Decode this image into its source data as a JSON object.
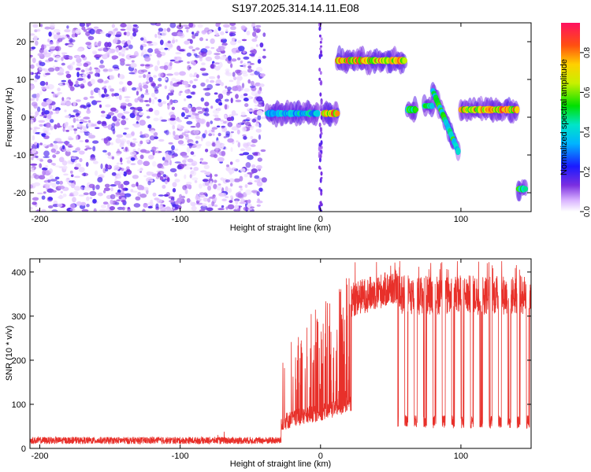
{
  "title": "S197.2025.314.14.11.E08",
  "chart_data": [
    {
      "type": "heatmap",
      "xlabel": "Height of straight line (km)",
      "ylabel": "Frequency (Hz)",
      "xlim": [
        -207,
        150
      ],
      "ylim": [
        -25,
        25
      ],
      "xticks": [
        -200,
        -100,
        0,
        100
      ],
      "yticks": [
        -20,
        -10,
        0,
        10,
        20
      ],
      "colorbar": {
        "label": "Normalized spectral amplitude",
        "range": [
          0.0,
          0.95
        ],
        "ticks": [
          0.0,
          0.2,
          0.4,
          0.6,
          0.8
        ]
      },
      "noise_region_x": [
        -207,
        -40
      ],
      "features": [
        {
          "x_start": -38,
          "x_end": -2,
          "freq_center": 1,
          "amplitude": 0.45
        },
        {
          "x_start": 2,
          "x_end": 12,
          "freq_center": 1,
          "amplitude": 0.85
        },
        {
          "x_start": 12,
          "x_end": 60,
          "freq_center": 15,
          "amplitude": 0.85
        },
        {
          "x_start": 62,
          "x_end": 68,
          "freq_center": 2,
          "amplitude": 0.6
        },
        {
          "x_start": 74,
          "x_end": 80,
          "freq_center": 3,
          "amplitude": 0.6
        },
        {
          "x_start": 80,
          "x_end": 98,
          "freq_center": 7,
          "freq_end": -9,
          "amplitude": 0.55
        },
        {
          "x_start": 100,
          "x_end": 140,
          "freq_center": 2,
          "amplitude": 0.85
        },
        {
          "x_start": 141,
          "x_end": 146,
          "freq_center": -19,
          "amplitude": 0.55
        }
      ]
    },
    {
      "type": "line",
      "xlabel": "Height of straight line (km)",
      "ylabel": "SNR (10 * v/v)",
      "xlim": [
        -207,
        150
      ],
      "ylim": [
        0,
        430
      ],
      "xticks": [
        -200,
        -100,
        0,
        100
      ],
      "yticks": [
        0,
        100,
        200,
        300,
        400
      ],
      "color": "#e8302a",
      "segments": [
        {
          "x_start": -207,
          "x_end": -28,
          "baseline": 18,
          "noise": 8
        },
        {
          "x_start": -28,
          "x_end": 22,
          "baseline": 60,
          "noise": 40,
          "peak_max": 405
        },
        {
          "x_start": 22,
          "x_end": 55,
          "baseline": 330,
          "noise": 40,
          "peak_max": 425
        },
        {
          "x_start": 55,
          "x_end": 150,
          "baseline": 330,
          "noise": 45,
          "dropout_level": 60,
          "peak_max": 425
        }
      ]
    }
  ]
}
